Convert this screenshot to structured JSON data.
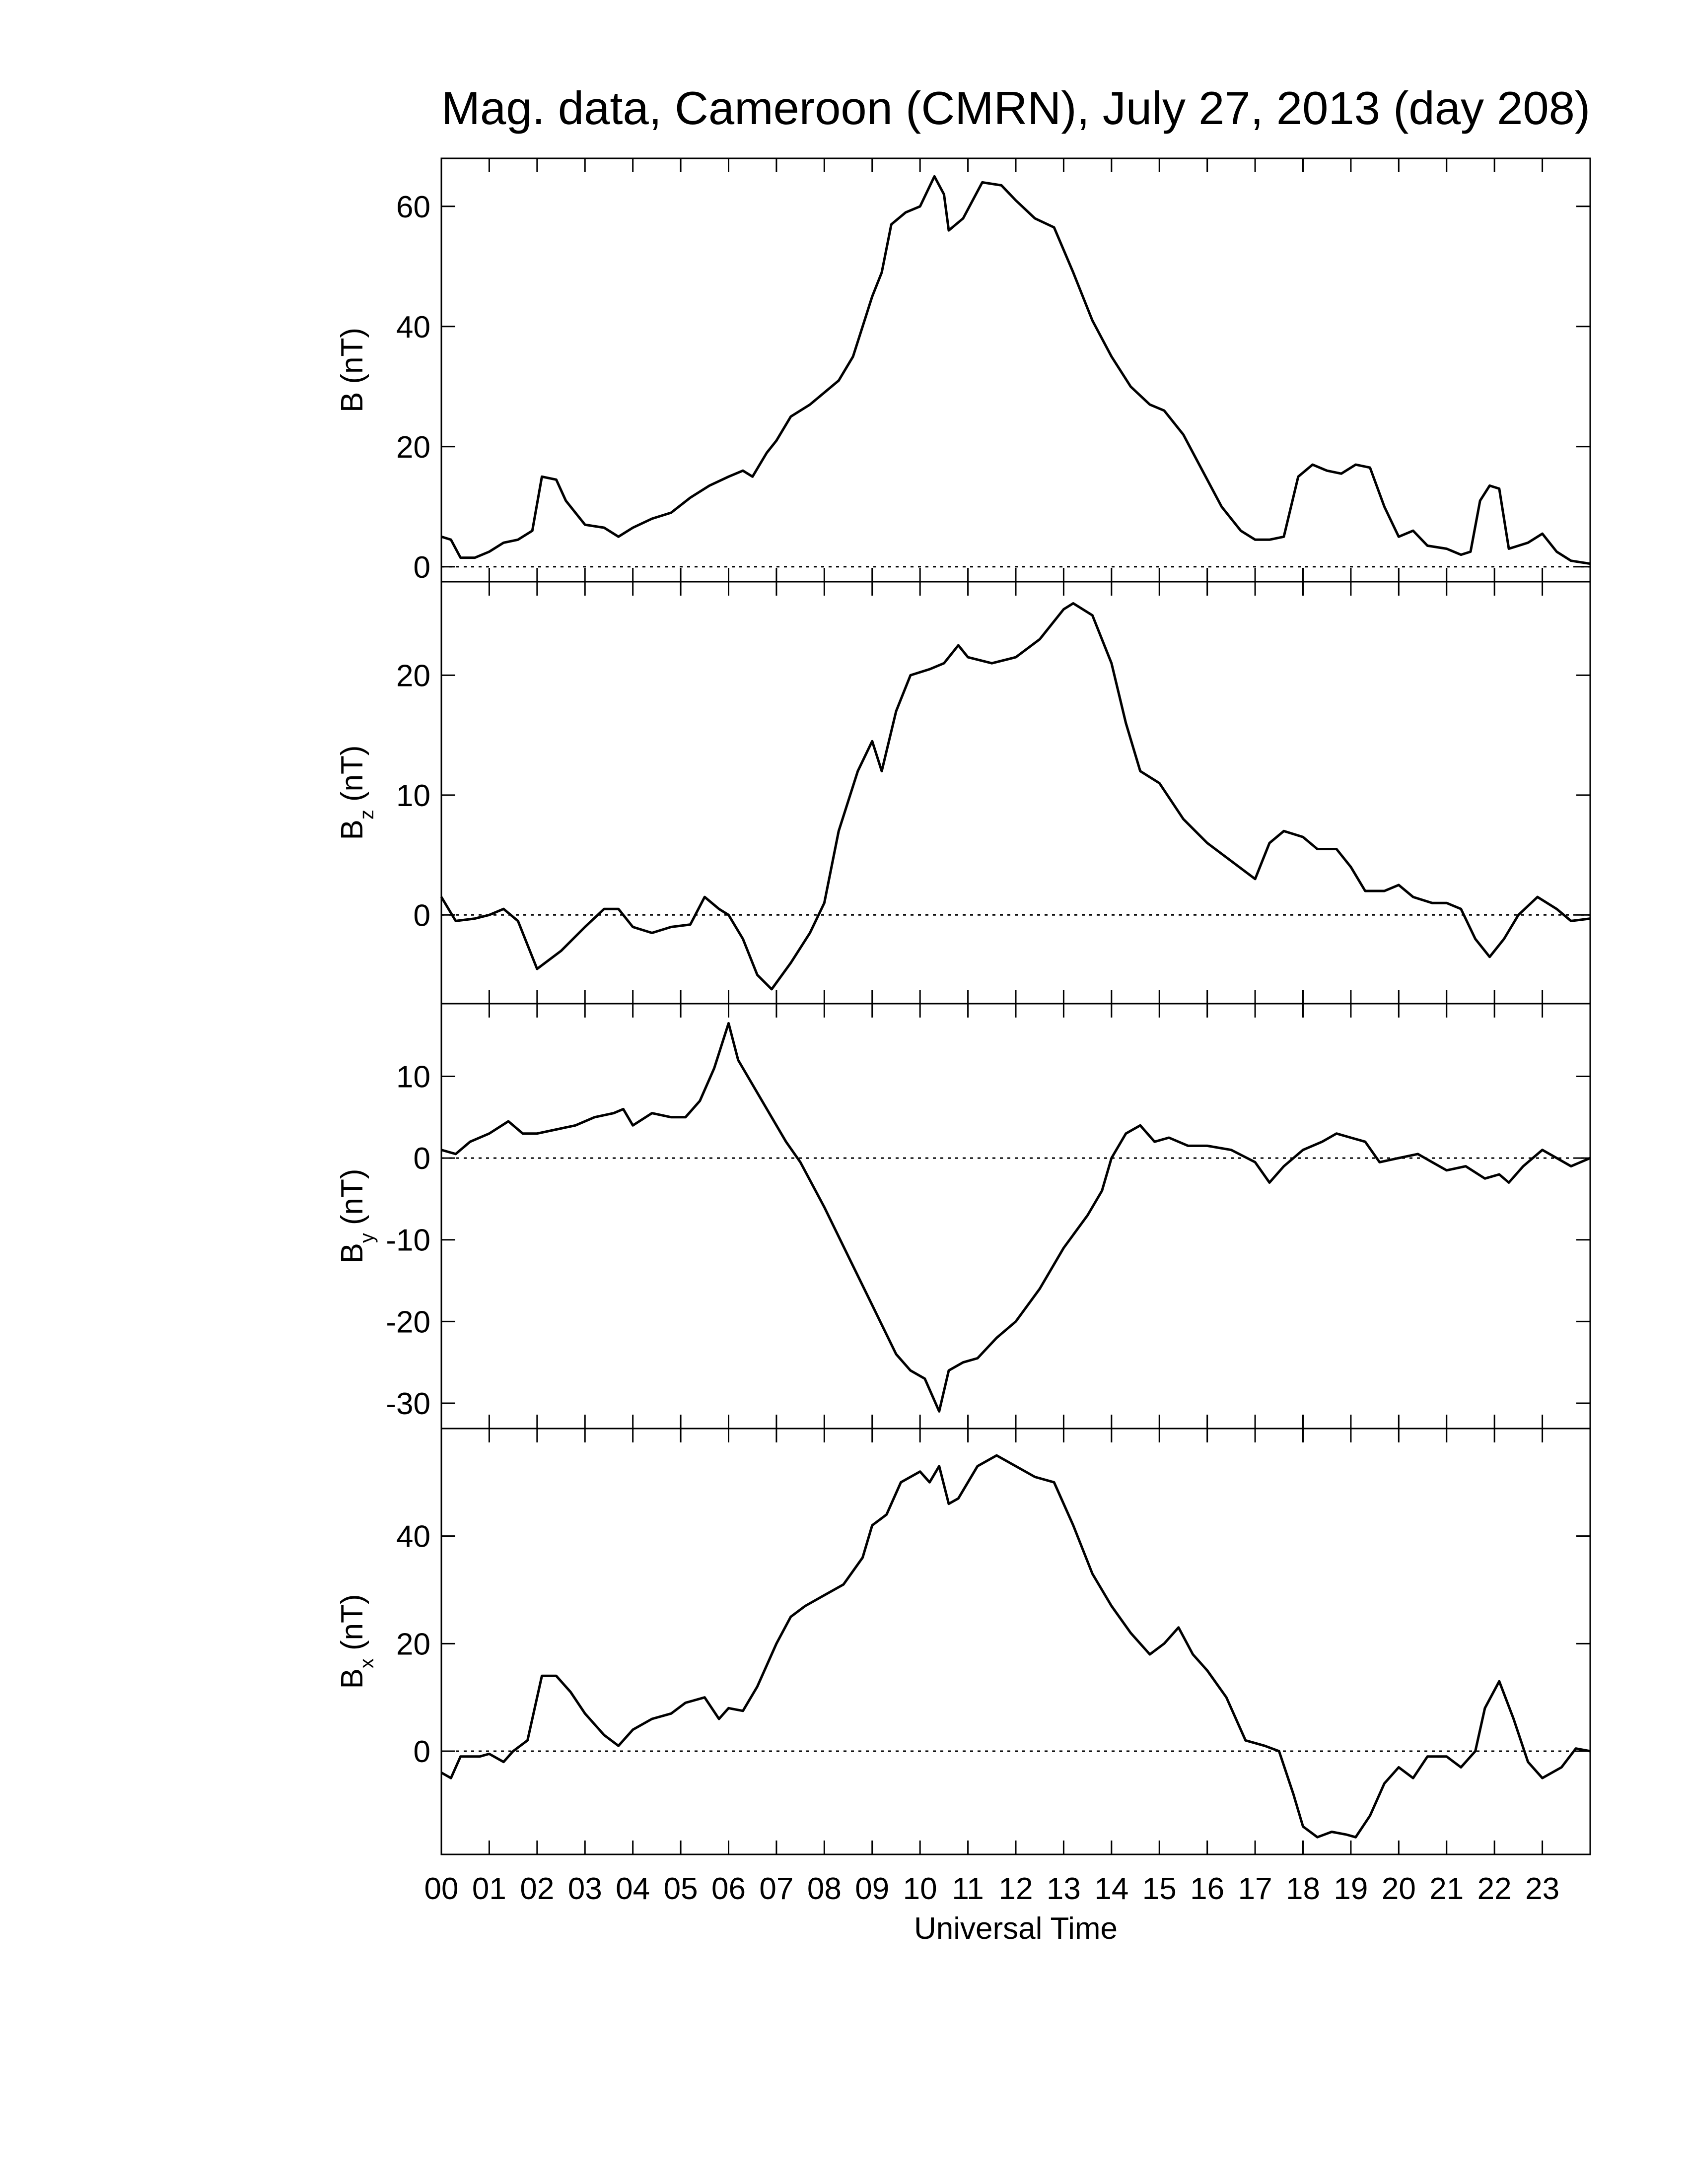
{
  "chart_data": [
    {
      "type": "line",
      "title": "Mag. data, Cameroon (CMRN), July 27, 2013 (day 208)",
      "ylabel": {
        "symbol": "B",
        "unit": "(nT)"
      },
      "x": [
        0,
        0.2,
        0.4,
        0.7,
        1,
        1.3,
        1.6,
        1.9,
        2.1,
        2.4,
        2.6,
        3,
        3.4,
        3.7,
        4,
        4.4,
        4.8,
        5.2,
        5.6,
        6,
        6.3,
        6.5,
        6.8,
        7,
        7.3,
        7.7,
        8,
        8.3,
        8.6,
        9,
        9.2,
        9.4,
        9.7,
        10,
        10.3,
        10.5,
        10.6,
        10.9,
        11.3,
        11.7,
        12,
        12.4,
        12.8,
        13.2,
        13.6,
        14,
        14.4,
        14.8,
        15.1,
        15.5,
        15.9,
        16.3,
        16.7,
        17,
        17.3,
        17.6,
        17.9,
        18.2,
        18.5,
        18.8,
        19.1,
        19.4,
        19.7,
        20,
        20.3,
        20.6,
        21,
        21.3,
        21.5,
        21.7,
        21.9,
        22.1,
        22.3,
        22.7,
        23,
        23.3,
        23.6,
        24
      ],
      "series": [
        {
          "color": "#000000",
          "values": [
            5,
            4.5,
            1.5,
            1.5,
            2.5,
            4,
            4.5,
            6,
            15,
            14.5,
            11,
            7,
            6.5,
            5,
            6.5,
            8,
            9,
            11.5,
            13.5,
            15,
            16,
            15,
            19,
            21,
            25,
            27,
            29,
            31,
            35,
            45,
            49,
            57,
            59,
            60,
            65,
            62,
            56,
            58,
            64,
            63.5,
            61,
            58,
            56.5,
            49,
            41,
            35,
            30,
            27,
            26,
            22,
            16,
            10,
            6,
            4.5,
            4.5,
            5,
            15,
            17,
            16,
            15.5,
            17,
            16.5,
            10,
            5,
            6,
            3.5,
            3,
            2,
            2.5,
            11,
            13.5,
            13,
            3,
            4,
            5.5,
            2.5,
            1,
            0.5
          ]
        }
      ],
      "xlim": [
        0,
        24
      ],
      "ylim": [
        -2.5,
        68
      ],
      "yticks": [
        0,
        20,
        40,
        60
      ],
      "zero_line": true
    },
    {
      "type": "line",
      "ylabel": {
        "symbol": "B",
        "subscript": "z",
        "unit": "(nT)"
      },
      "x": [
        0,
        0.3,
        0.7,
        1,
        1.3,
        1.6,
        2,
        2.5,
        3,
        3.4,
        3.7,
        4,
        4.4,
        4.8,
        5.2,
        5.5,
        5.8,
        6,
        6.3,
        6.6,
        6.9,
        7.3,
        7.7,
        8,
        8.3,
        8.7,
        9,
        9.2,
        9.5,
        9.8,
        10.2,
        10.5,
        10.8,
        11,
        11.5,
        12,
        12.5,
        13,
        13.2,
        13.6,
        14,
        14.3,
        14.6,
        15,
        15.5,
        16,
        16.5,
        17,
        17.3,
        17.6,
        18,
        18.3,
        18.7,
        19,
        19.3,
        19.7,
        20,
        20.3,
        20.7,
        21,
        21.3,
        21.6,
        21.9,
        22.2,
        22.5,
        22.9,
        23.3,
        23.6,
        24
      ],
      "series": [
        {
          "color": "#000000",
          "values": [
            1.5,
            -0.5,
            -0.3,
            0,
            0.5,
            -0.5,
            -4.5,
            -3,
            -1,
            0.5,
            0.5,
            -1,
            -1.5,
            -1,
            -0.8,
            1.5,
            0.5,
            0,
            -2,
            -5,
            -6.2,
            -4,
            -1.5,
            1,
            7,
            12,
            14.5,
            12,
            17,
            20,
            20.5,
            21,
            22.5,
            21.5,
            21,
            21.5,
            23,
            25.5,
            26,
            25,
            21,
            16,
            12,
            11,
            8,
            6,
            4.5,
            3,
            6,
            7,
            6.5,
            5.5,
            5.5,
            4,
            2,
            2,
            2.5,
            1.5,
            1,
            1,
            0.5,
            -2,
            -3.5,
            -2,
            0,
            1.5,
            0.5,
            -0.5,
            -0.3
          ]
        }
      ],
      "xlim": [
        0,
        24
      ],
      "ylim": [
        -7.4,
        27.8
      ],
      "yticks": [
        0,
        10,
        20
      ],
      "zero_line": true
    },
    {
      "type": "line",
      "ylabel": {
        "symbol": "B",
        "subscript": "y",
        "unit": "(nT)"
      },
      "x": [
        0,
        0.3,
        0.6,
        1,
        1.4,
        1.7,
        2,
        2.4,
        2.8,
        3.2,
        3.6,
        3.8,
        4,
        4.4,
        4.8,
        5.1,
        5.4,
        5.7,
        6,
        6.2,
        6.5,
        6.8,
        7.2,
        7.5,
        8,
        8.5,
        9,
        9.5,
        9.8,
        10.1,
        10.4,
        10.6,
        10.9,
        11.2,
        11.6,
        12,
        12.5,
        13,
        13.5,
        13.8,
        14,
        14.3,
        14.6,
        14.9,
        15.2,
        15.6,
        16,
        16.5,
        17,
        17.3,
        17.6,
        18,
        18.4,
        18.7,
        19,
        19.3,
        19.6,
        20,
        20.4,
        20.7,
        21,
        21.4,
        21.8,
        22.1,
        22.3,
        22.6,
        23,
        23.3,
        23.6,
        24
      ],
      "series": [
        {
          "color": "#000000",
          "values": [
            1,
            0.5,
            2,
            3,
            4.5,
            3,
            3,
            3.5,
            4,
            5,
            5.5,
            6,
            4,
            5.5,
            5,
            5,
            7,
            11,
            16.5,
            12,
            9,
            6,
            2,
            -0.5,
            -6,
            -12,
            -18,
            -24,
            -26,
            -27,
            -31,
            -26,
            -25,
            -24.5,
            -22,
            -20,
            -16,
            -11,
            -7,
            -4,
            0,
            3,
            4,
            2,
            2.5,
            1.5,
            1.5,
            1,
            -0.5,
            -3,
            -1,
            1,
            2,
            3,
            2.5,
            2,
            -0.5,
            0,
            0.5,
            -0.5,
            -1.5,
            -1,
            -2.5,
            -2,
            -3,
            -1,
            1,
            0,
            -1,
            0
          ]
        }
      ],
      "xlim": [
        0,
        24
      ],
      "ylim": [
        -33.1,
        18.9
      ],
      "yticks": [
        -30,
        -20,
        -10,
        0,
        10
      ],
      "zero_line": true
    },
    {
      "type": "line",
      "ylabel": {
        "symbol": "B",
        "subscript": "x",
        "unit": "(nT)"
      },
      "xlabel": "Universal Time",
      "x": [
        0,
        0.2,
        0.4,
        0.8,
        1,
        1.3,
        1.5,
        1.8,
        2.1,
        2.4,
        2.7,
        3,
        3.4,
        3.7,
        4,
        4.4,
        4.8,
        5.1,
        5.5,
        5.8,
        6,
        6.3,
        6.6,
        7,
        7.3,
        7.6,
        8,
        8.4,
        8.8,
        9,
        9.3,
        9.6,
        10,
        10.2,
        10.4,
        10.6,
        10.8,
        11.2,
        11.6,
        12,
        12.4,
        12.8,
        13.2,
        13.6,
        14,
        14.4,
        14.8,
        15.1,
        15.4,
        15.7,
        16,
        16.4,
        16.8,
        17.2,
        17.5,
        17.8,
        18,
        18.3,
        18.6,
        18.9,
        19.1,
        19.4,
        19.7,
        20,
        20.3,
        20.6,
        21,
        21.3,
        21.6,
        21.8,
        22.1,
        22.4,
        22.7,
        23,
        23.4,
        23.7,
        24
      ],
      "series": [
        {
          "color": "#000000",
          "values": [
            -4,
            -5,
            -1,
            -1,
            -0.5,
            -2,
            0,
            2,
            14,
            14,
            11,
            7,
            3,
            1,
            4,
            6,
            7,
            9,
            10,
            6,
            8,
            7.5,
            12,
            20,
            25,
            27,
            29,
            31,
            36,
            42,
            44,
            50,
            52,
            50,
            53,
            46,
            47,
            53,
            55,
            53,
            51,
            50,
            42,
            33,
            27,
            22,
            18,
            20,
            23,
            18,
            15,
            10,
            2,
            1,
            0,
            -8,
            -14,
            -16,
            -15,
            -15.5,
            -16,
            -12,
            -6,
            -3,
            -5,
            -1,
            -1,
            -3,
            0,
            8,
            13,
            6,
            -2,
            -5,
            -3,
            0.5,
            0
          ]
        }
      ],
      "xlim": [
        0,
        24
      ],
      "ylim": [
        -19.2,
        60
      ],
      "yticks": [
        0,
        20,
        40
      ],
      "zero_line": true,
      "xticks": [
        {
          "value": 0,
          "label": "00"
        },
        {
          "value": 1,
          "label": "01"
        },
        {
          "value": 2,
          "label": "02"
        },
        {
          "value": 3,
          "label": "03"
        },
        {
          "value": 4,
          "label": "04"
        },
        {
          "value": 5,
          "label": "05"
        },
        {
          "value": 6,
          "label": "06"
        },
        {
          "value": 7,
          "label": "07"
        },
        {
          "value": 8,
          "label": "08"
        },
        {
          "value": 9,
          "label": "09"
        },
        {
          "value": 10,
          "label": "10"
        },
        {
          "value": 11,
          "label": "11"
        },
        {
          "value": 12,
          "label": "12"
        },
        {
          "value": 13,
          "label": "13"
        },
        {
          "value": 14,
          "label": "14"
        },
        {
          "value": 15,
          "label": "15"
        },
        {
          "value": 16,
          "label": "16"
        },
        {
          "value": 17,
          "label": "17"
        },
        {
          "value": 18,
          "label": "18"
        },
        {
          "value": 19,
          "label": "19"
        },
        {
          "value": 20,
          "label": "20"
        },
        {
          "value": 21,
          "label": "21"
        },
        {
          "value": 22,
          "label": "22"
        },
        {
          "value": 23,
          "label": "23"
        }
      ]
    }
  ]
}
